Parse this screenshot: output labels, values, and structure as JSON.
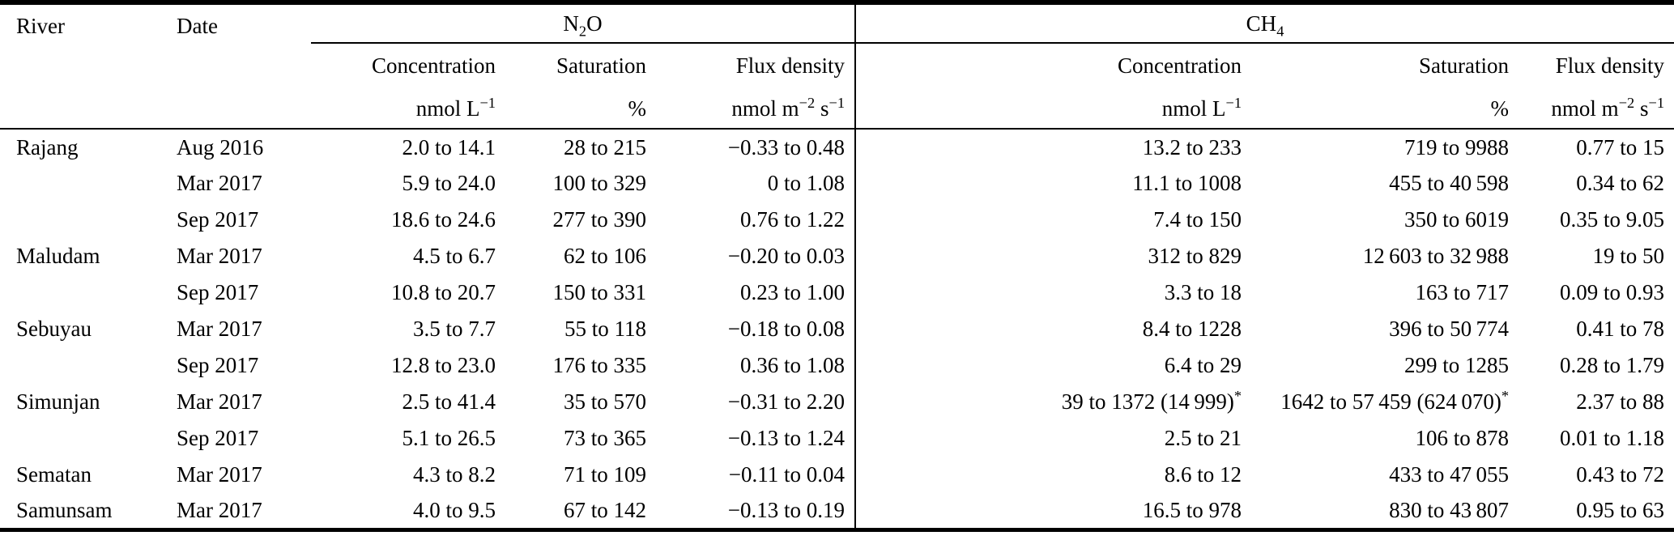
{
  "table": {
    "col_river": "River",
    "col_date": "Date",
    "group_n2o": "N_{2}O",
    "group_ch4": "CH_{4}",
    "subheaders": {
      "concentration": "Concentration",
      "saturation": "Saturation",
      "flux": "Flux density"
    },
    "units": {
      "concentration": "nmol L^{−1}",
      "saturation": "%",
      "flux": "nmol m^{−2} s^{−1}"
    },
    "rows": [
      {
        "river": "Rajang",
        "date": "Aug 2016",
        "n2o_conc": "2.0 to 14.1",
        "n2o_sat": "28 to 215",
        "n2o_flux": "−0.33 to 0.48",
        "ch4_conc": "13.2 to 233",
        "ch4_sat": "719 to 9988",
        "ch4_flux": "0.77 to 15"
      },
      {
        "river": "",
        "date": "Mar 2017",
        "n2o_conc": "5.9 to 24.0",
        "n2o_sat": "100 to 329",
        "n2o_flux": "0 to 1.08",
        "ch4_conc": "11.1 to 1008",
        "ch4_sat": "455 to 40 598",
        "ch4_flux": "0.34 to 62"
      },
      {
        "river": "",
        "date": "Sep 2017",
        "n2o_conc": "18.6 to 24.6",
        "n2o_sat": "277 to 390",
        "n2o_flux": "0.76 to 1.22",
        "ch4_conc": "7.4 to 150",
        "ch4_sat": "350 to 6019",
        "ch4_flux": "0.35 to 9.05"
      },
      {
        "river": "Maludam",
        "date": "Mar 2017",
        "n2o_conc": "4.5 to 6.7",
        "n2o_sat": "62 to 106",
        "n2o_flux": "−0.20 to 0.03",
        "ch4_conc": "312 to 829",
        "ch4_sat": "12 603 to 32 988",
        "ch4_flux": "19 to 50"
      },
      {
        "river": "",
        "date": "Sep 2017",
        "n2o_conc": "10.8 to 20.7",
        "n2o_sat": "150 to 331",
        "n2o_flux": "0.23 to 1.00",
        "ch4_conc": "3.3 to 18",
        "ch4_sat": "163 to 717",
        "ch4_flux": "0.09 to 0.93"
      },
      {
        "river": "Sebuyau",
        "date": "Mar 2017",
        "n2o_conc": "3.5 to 7.7",
        "n2o_sat": "55 to 118",
        "n2o_flux": "−0.18 to 0.08",
        "ch4_conc": "8.4 to 1228",
        "ch4_sat": "396 to 50 774",
        "ch4_flux": "0.41 to 78"
      },
      {
        "river": "",
        "date": "Sep 2017",
        "n2o_conc": "12.8 to 23.0",
        "n2o_sat": "176 to 335",
        "n2o_flux": "0.36 to 1.08",
        "ch4_conc": "6.4 to 29",
        "ch4_sat": "299 to 1285",
        "ch4_flux": "0.28 to 1.79"
      },
      {
        "river": "Simunjan",
        "date": "Mar 2017",
        "n2o_conc": "2.5 to 41.4",
        "n2o_sat": "35 to 570",
        "n2o_flux": "−0.31 to 2.20",
        "ch4_conc": "39 to 1372 (14 999)^{*}",
        "ch4_sat": "1642 to 57 459 (624 070)^{*}",
        "ch4_flux": "2.37 to 88"
      },
      {
        "river": "",
        "date": "Sep 2017",
        "n2o_conc": "5.1 to 26.5",
        "n2o_sat": "73 to 365",
        "n2o_flux": "−0.13 to 1.24",
        "ch4_conc": "2.5 to 21",
        "ch4_sat": "106 to 878",
        "ch4_flux": "0.01 to 1.18"
      },
      {
        "river": "Sematan",
        "date": "Mar 2017",
        "n2o_conc": "4.3 to 8.2",
        "n2o_sat": "71 to 109",
        "n2o_flux": "−0.11 to 0.04",
        "ch4_conc": "8.6 to 12",
        "ch4_sat": "433 to 47 055",
        "ch4_flux": "0.43 to 72"
      },
      {
        "river": "Samunsam",
        "date": "Mar 2017",
        "n2o_conc": "4.0 to 9.5",
        "n2o_sat": "67 to 142",
        "n2o_flux": "−0.13 to 0.19",
        "ch4_conc": "16.5 to 978",
        "ch4_sat": "830 to 43 807",
        "ch4_flux": "0.95 to 63"
      }
    ]
  }
}
